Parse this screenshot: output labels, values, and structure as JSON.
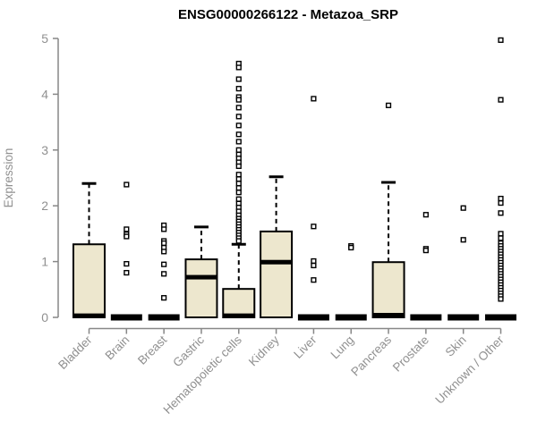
{
  "chart_data": {
    "type": "boxplot",
    "title": "ENSG00000266122 - Metazoa_SRP",
    "ylabel": "Expression",
    "xlabel": "",
    "ylim": [
      0,
      5
    ],
    "yticks": [
      0,
      1,
      2,
      3,
      4,
      5
    ],
    "grid": false,
    "legend": "none",
    "categories": [
      "Bladder",
      "Brain",
      "Breast",
      "Gastric",
      "Hematopoietic cells",
      "Kidney",
      "Liver",
      "Lung",
      "Pancreas",
      "Prostate",
      "Skin",
      "Unknown / Other"
    ],
    "series": [
      {
        "name": "Bladder",
        "whisker_low": 0,
        "q1": 0,
        "median": 0.03,
        "q3": 1.31,
        "whisker_high": 2.4,
        "outliers": []
      },
      {
        "name": "Brain",
        "whisker_low": 0,
        "q1": 0,
        "median": 0.0,
        "q3": 0.0,
        "whisker_high": 0.0,
        "outliers": [
          2.38,
          1.58,
          1.49,
          1.45,
          0.96,
          0.8
        ]
      },
      {
        "name": "Breast",
        "whisker_low": 0,
        "q1": 0,
        "median": 0.0,
        "q3": 0.0,
        "whisker_high": 0.0,
        "outliers": [
          1.65,
          1.58,
          1.37,
          1.33,
          1.25,
          1.18,
          0.95,
          0.78,
          0.35
        ]
      },
      {
        "name": "Gastric",
        "whisker_low": 0,
        "q1": 0,
        "median": 0.72,
        "q3": 1.04,
        "whisker_high": 1.62,
        "outliers": []
      },
      {
        "name": "Hematopoietic cells",
        "whisker_low": 0,
        "q1": 0,
        "median": 0.03,
        "q3": 0.51,
        "whisker_high": 1.31,
        "outliers": [
          4.55,
          4.48,
          4.27,
          4.1,
          3.95,
          3.9,
          3.76,
          3.6,
          3.44,
          3.28,
          3.15,
          3.0,
          2.92,
          2.85,
          2.78,
          2.71,
          2.56,
          2.48,
          2.4,
          2.32,
          2.24,
          2.12,
          2.04,
          1.97,
          1.9,
          1.83,
          1.77,
          1.72,
          1.67,
          1.62,
          1.57,
          1.52,
          1.47,
          1.42,
          1.37
        ]
      },
      {
        "name": "Kidney",
        "whisker_low": 0,
        "q1": 0,
        "median": 0.99,
        "q3": 1.54,
        "whisker_high": 2.52,
        "outliers": []
      },
      {
        "name": "Liver",
        "whisker_low": 0,
        "q1": 0,
        "median": 0.0,
        "q3": 0.0,
        "whisker_high": 0.0,
        "outliers": [
          3.92,
          1.63,
          1.01,
          0.93,
          0.67
        ]
      },
      {
        "name": "Lung",
        "whisker_low": 0,
        "q1": 0,
        "median": 0.0,
        "q3": 0.0,
        "whisker_high": 0.0,
        "outliers": [
          1.28,
          1.25
        ]
      },
      {
        "name": "Pancreas",
        "whisker_low": 0,
        "q1": 0,
        "median": 0.04,
        "q3": 0.99,
        "whisker_high": 2.42,
        "outliers": [
          3.8
        ]
      },
      {
        "name": "Prostate",
        "whisker_low": 0,
        "q1": 0,
        "median": 0.0,
        "q3": 0.0,
        "whisker_high": 0.0,
        "outliers": [
          1.84,
          1.23,
          1.2
        ]
      },
      {
        "name": "Skin",
        "whisker_low": 0,
        "q1": 0,
        "median": 0.0,
        "q3": 0.0,
        "whisker_high": 0.0,
        "outliers": [
          1.96,
          1.39
        ]
      },
      {
        "name": "Unknown / Other",
        "whisker_low": 0,
        "q1": 0,
        "median": 0.0,
        "q3": 0.0,
        "whisker_high": 0.0,
        "outliers": [
          4.97,
          3.9,
          2.13,
          2.05,
          1.87,
          1.5,
          1.42,
          1.33,
          1.28,
          1.23,
          1.18,
          1.13,
          1.08,
          1.03,
          0.98,
          0.93,
          0.88,
          0.83,
          0.78,
          0.73,
          0.68,
          0.63,
          0.58,
          0.53,
          0.48,
          0.43,
          0.38,
          0.33
        ]
      }
    ],
    "colors": {
      "box_fill": "#EDE7CE",
      "box_border": "#000000",
      "median": "#000000",
      "whisker": "#000000",
      "outlier_border": "#000000",
      "axis_line": "#878787",
      "tick_label": "#909090",
      "title": "#000000",
      "background": "#ffffff"
    }
  }
}
